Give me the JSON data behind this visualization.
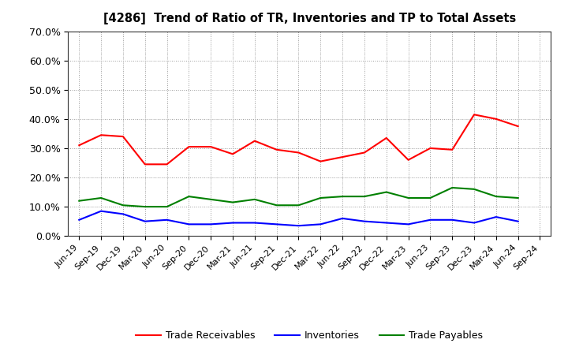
{
  "title": "[4286]  Trend of Ratio of TR, Inventories and TP to Total Assets",
  "x_labels": [
    "Jun-19",
    "Sep-19",
    "Dec-19",
    "Mar-20",
    "Jun-20",
    "Sep-20",
    "Dec-20",
    "Mar-21",
    "Jun-21",
    "Sep-21",
    "Dec-21",
    "Mar-22",
    "Jun-22",
    "Sep-22",
    "Dec-22",
    "Mar-23",
    "Jun-23",
    "Sep-23",
    "Dec-23",
    "Mar-24",
    "Jun-24",
    "Sep-24"
  ],
  "trade_receivables": [
    0.31,
    0.345,
    0.34,
    0.245,
    0.245,
    0.305,
    0.305,
    0.28,
    0.325,
    0.295,
    0.285,
    0.255,
    0.27,
    0.285,
    0.335,
    0.26,
    0.3,
    0.295,
    0.415,
    0.4,
    0.375,
    null
  ],
  "inventories": [
    0.055,
    0.085,
    0.075,
    0.05,
    0.055,
    0.04,
    0.04,
    0.045,
    0.045,
    0.04,
    0.035,
    0.04,
    0.06,
    0.05,
    0.045,
    0.04,
    0.055,
    0.055,
    0.045,
    0.065,
    0.05,
    null
  ],
  "trade_payables": [
    0.12,
    0.13,
    0.105,
    0.1,
    0.1,
    0.135,
    0.125,
    0.115,
    0.125,
    0.105,
    0.105,
    0.13,
    0.135,
    0.135,
    0.15,
    0.13,
    0.13,
    0.165,
    0.16,
    0.135,
    0.13,
    null
  ],
  "color_tr": "#FF0000",
  "color_inv": "#0000FF",
  "color_tp": "#008000",
  "ylim": [
    0.0,
    0.7
  ],
  "yticks": [
    0.0,
    0.1,
    0.2,
    0.3,
    0.4,
    0.5,
    0.6,
    0.7
  ],
  "legend_labels": [
    "Trade Receivables",
    "Inventories",
    "Trade Payables"
  ],
  "background_color": "#FFFFFF",
  "plot_bg_color": "#FFFFFF"
}
